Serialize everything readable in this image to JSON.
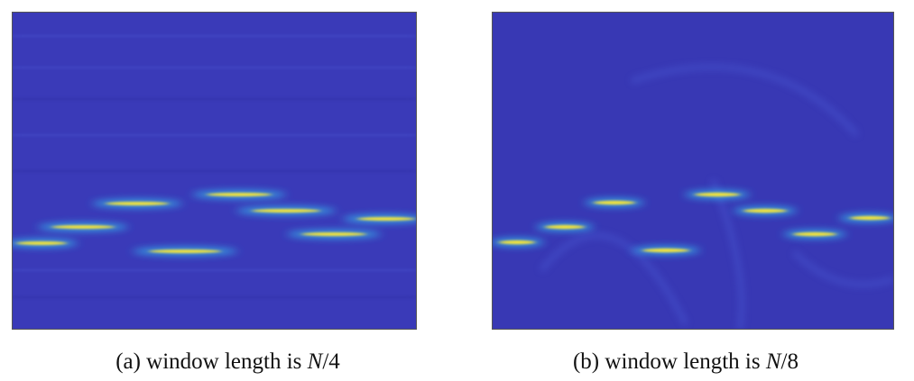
{
  "captions": [
    {
      "text": "(a) window length is ",
      "variable": "N",
      "suffix": "/4"
    },
    {
      "text": "(b) window length is ",
      "variable": "N",
      "suffix": "/8"
    }
  ]
}
